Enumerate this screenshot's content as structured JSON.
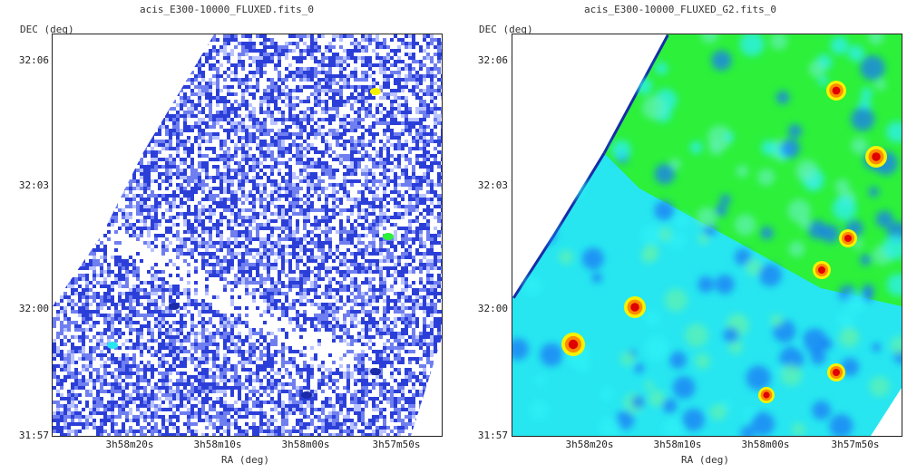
{
  "panels": [
    {
      "title": "acis_E300-10000_FLUXED.fits_0",
      "y_axis_title": "DEC (deg)",
      "x_axis_title": "RA (deg)",
      "y_ticks": [
        "32:06",
        "32:03",
        "32:00",
        "31:57"
      ],
      "x_ticks": [
        "3h58m20s",
        "3h58m10s",
        "3h58m00s",
        "3h57m50s"
      ]
    },
    {
      "title": "acis_E300-10000_FLUXED_G2.fits_0",
      "y_axis_title": "DEC (deg)",
      "x_axis_title": "RA (deg)",
      "y_ticks": [
        "32:06",
        "32:03",
        "32:00",
        "31:57"
      ],
      "x_ticks": [
        "3h58m20s",
        "3h58m10s",
        "3h58m00s",
        "3h57m50s"
      ]
    }
  ],
  "colors": {
    "noise_blue": "#2b3fd8",
    "dark_blue": "#1a2aa8",
    "cyan": "#27e6f0",
    "green": "#2cf03a",
    "yellow": "#f6f200",
    "red": "#e00000"
  }
}
